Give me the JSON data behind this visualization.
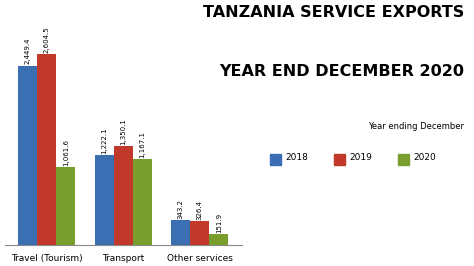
{
  "title_line1": "TANZANIA SERVICE EXPORTS",
  "title_line2": "YEAR END DECEMBER 2020",
  "categories": [
    "Travel (Tourism)",
    "Transport",
    "Other services"
  ],
  "years": [
    "2018",
    "2019",
    "2020"
  ],
  "values": [
    [
      2449.4,
      2604.5,
      1061.6
    ],
    [
      1222.1,
      1350.1,
      1167.1
    ],
    [
      343.2,
      326.4,
      151.9
    ]
  ],
  "colors": [
    "#3c6eb4",
    "#c0392b",
    "#7a9e2e"
  ],
  "legend_title": "Year ending December",
  "bar_labels": [
    [
      "2,449.4",
      "2,604.5",
      "1,061.6"
    ],
    [
      "1,222.1",
      "1,350.1",
      "1,167.1"
    ],
    [
      "343.2",
      "326.4",
      "151.9"
    ]
  ],
  "background_color": "#ffffff",
  "ylim": [
    0,
    3200
  ],
  "bar_width": 0.25
}
